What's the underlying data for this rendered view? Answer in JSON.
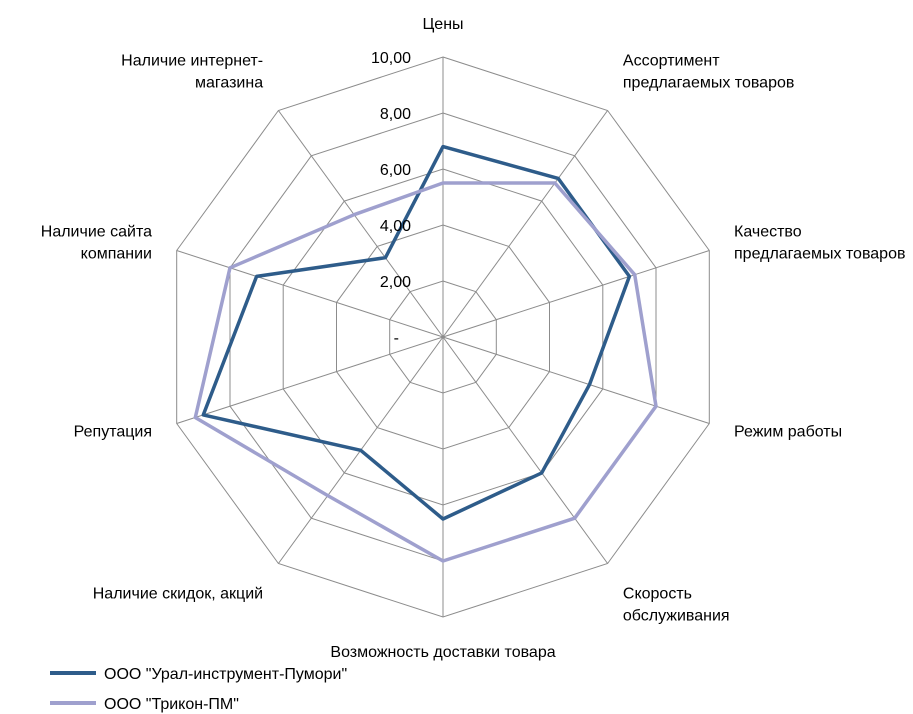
{
  "chart_data": {
    "type": "radar",
    "title": "",
    "categories": [
      [
        "Цены"
      ],
      [
        "Ассортимент",
        "предлагаемых товаров"
      ],
      [
        "Качество",
        "предлагаемых товаров"
      ],
      [
        "Режим работы"
      ],
      [
        "Скорость",
        "обслуживания"
      ],
      [
        "Возможность доставки товара"
      ],
      [
        "Наличие скидок, акций"
      ],
      [
        "Репутация"
      ],
      [
        "Наличие сайта",
        "компании"
      ],
      [
        "Наличие интернет-",
        "магазина"
      ]
    ],
    "axis": {
      "min": 0,
      "max": 10,
      "ticks": [
        0,
        2,
        4,
        6,
        8,
        10
      ],
      "tick_labels": [
        "-",
        "2,00",
        "4,00",
        "6,00",
        "8,00",
        "10,00"
      ]
    },
    "series": [
      {
        "name": "ООО \"Урал-инструмент-Пумори\"",
        "color": "#2E5C8A",
        "values": [
          6.8,
          7.0,
          7.0,
          5.5,
          6.0,
          6.5,
          5.0,
          9.0,
          7.0,
          3.5
        ]
      },
      {
        "name": "ООО \"Трикон-ПМ\"",
        "color": "#9FA0CE",
        "values": [
          5.5,
          6.8,
          7.2,
          8.0,
          8.0,
          8.0,
          7.0,
          9.3,
          8.0,
          5.4
        ]
      }
    ],
    "legend_position": "bottom-left",
    "grid_color": "#8C8C8C"
  }
}
